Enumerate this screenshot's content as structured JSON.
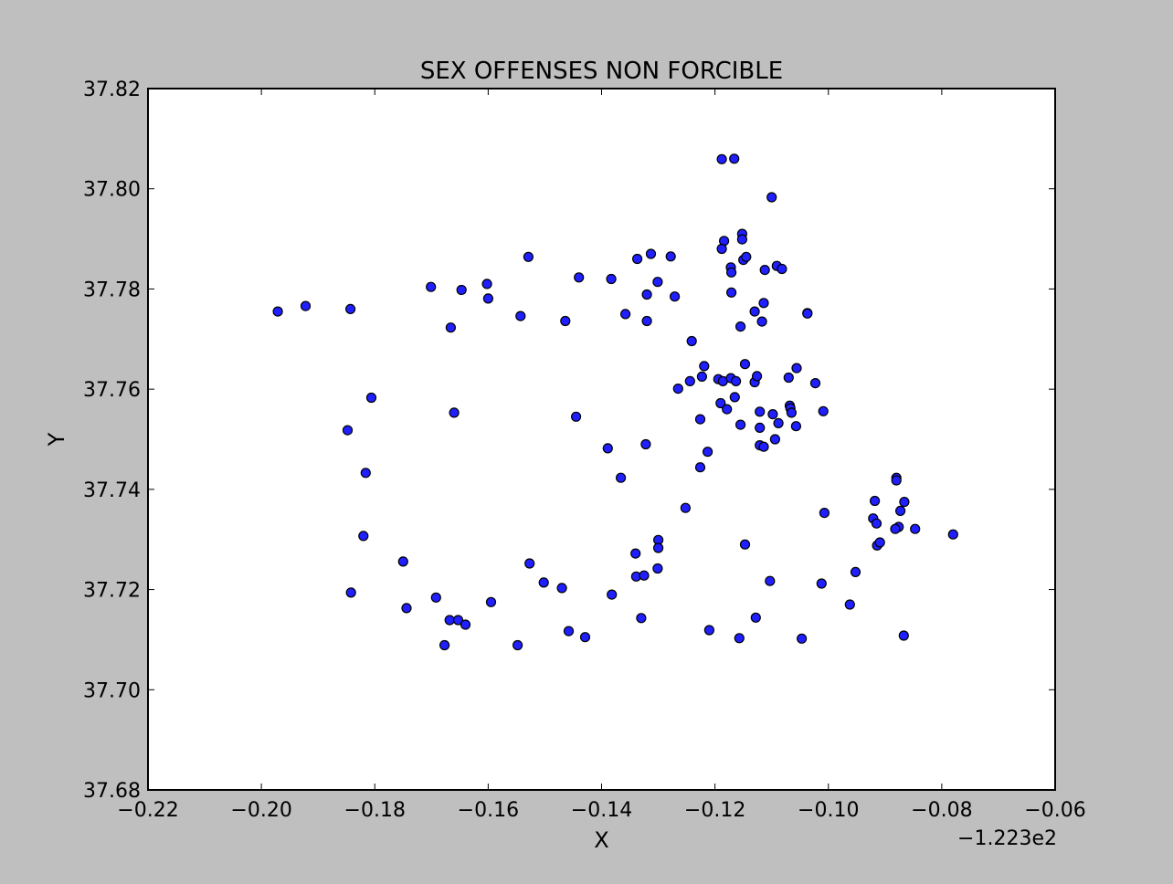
{
  "chart_data": {
    "type": "scatter",
    "title": "SEX OFFENSES NON FORCIBLE",
    "xlabel": "X",
    "ylabel": "Y",
    "x_offset_label": "−1.223e2",
    "xlim": [
      -0.22,
      -0.06
    ],
    "ylim": [
      37.68,
      37.82
    ],
    "x_ticks": [
      -0.22,
      -0.2,
      -0.18,
      -0.16,
      -0.14,
      -0.12,
      -0.1,
      -0.08,
      -0.06
    ],
    "x_tick_labels": [
      "−0.22",
      "−0.20",
      "−0.18",
      "−0.16",
      "−0.14",
      "−0.12",
      "−0.10",
      "−0.08",
      "−0.06"
    ],
    "y_ticks": [
      37.68,
      37.7,
      37.72,
      37.74,
      37.76,
      37.78,
      37.8,
      37.82
    ],
    "y_tick_labels": [
      "37.68",
      "37.70",
      "37.72",
      "37.74",
      "37.76",
      "37.78",
      "37.80",
      "37.82"
    ],
    "grid": false,
    "marker_color": "#1f1fff",
    "marker_edge": "#000000",
    "points": [
      [
        -0.1971,
        37.7755
      ],
      [
        -0.1922,
        37.7766
      ],
      [
        -0.1843,
        37.776
      ],
      [
        -0.1701,
        37.7804
      ],
      [
        -0.1647,
        37.7798
      ],
      [
        -0.1602,
        37.781
      ],
      [
        -0.16,
        37.7781
      ],
      [
        -0.1666,
        37.7723
      ],
      [
        -0.1543,
        37.7746
      ],
      [
        -0.1529,
        37.7864
      ],
      [
        -0.1464,
        37.7736
      ],
      [
        -0.144,
        37.7823
      ],
      [
        -0.1383,
        37.782
      ],
      [
        -0.1358,
        37.775
      ],
      [
        -0.1337,
        37.786
      ],
      [
        -0.1313,
        37.787
      ],
      [
        -0.1301,
        37.7814
      ],
      [
        -0.132,
        37.7789
      ],
      [
        -0.132,
        37.7736
      ],
      [
        -0.1278,
        37.7865
      ],
      [
        -0.1271,
        37.7785
      ],
      [
        -0.1806,
        37.7583
      ],
      [
        -0.1848,
        37.7518
      ],
      [
        -0.1816,
        37.7433
      ],
      [
        -0.166,
        37.7553
      ],
      [
        -0.1445,
        37.7545
      ],
      [
        -0.1389,
        37.7482
      ],
      [
        -0.1366,
        37.7423
      ],
      [
        -0.1322,
        37.749
      ],
      [
        -0.1241,
        37.7696
      ],
      [
        -0.1265,
        37.7601
      ],
      [
        -0.1244,
        37.7616
      ],
      [
        -0.1219,
        37.7646
      ],
      [
        -0.1223,
        37.7625
      ],
      [
        -0.1194,
        37.762
      ],
      [
        -0.1186,
        37.7616
      ],
      [
        -0.1172,
        37.7622
      ],
      [
        -0.1163,
        37.7616
      ],
      [
        -0.1147,
        37.765
      ],
      [
        -0.113,
        37.7614
      ],
      [
        -0.1126,
        37.7626
      ],
      [
        -0.107,
        37.7623
      ],
      [
        -0.1056,
        37.7642
      ],
      [
        -0.1023,
        37.7612
      ],
      [
        -0.119,
        37.7572
      ],
      [
        -0.1179,
        37.756
      ],
      [
        -0.1165,
        37.7584
      ],
      [
        -0.1226,
        37.754
      ],
      [
        -0.1155,
        37.7529
      ],
      [
        -0.1121,
        37.7555
      ],
      [
        -0.1098,
        37.755
      ],
      [
        -0.1121,
        37.7523
      ],
      [
        -0.1088,
        37.7532
      ],
      [
        -0.1068,
        37.7567
      ],
      [
        -0.1067,
        37.7562
      ],
      [
        -0.1065,
        37.7553
      ],
      [
        -0.1057,
        37.7526
      ],
      [
        -0.1009,
        37.7556
      ],
      [
        -0.1213,
        37.7475
      ],
      [
        -0.1226,
        37.7444
      ],
      [
        -0.1121,
        37.7488
      ],
      [
        -0.1114,
        37.7485
      ],
      [
        -0.1094,
        37.75
      ],
      [
        -0.1188,
        37.8059
      ],
      [
        -0.1166,
        37.806
      ],
      [
        -0.11,
        37.7983
      ],
      [
        -0.1152,
        37.791
      ],
      [
        -0.1152,
        37.7899
      ],
      [
        -0.1184,
        37.7896
      ],
      [
        -0.1188,
        37.788
      ],
      [
        -0.1172,
        37.7843
      ],
      [
        -0.1171,
        37.7833
      ],
      [
        -0.115,
        37.7858
      ],
      [
        -0.1145,
        37.7864
      ],
      [
        -0.1112,
        37.7838
      ],
      [
        -0.1091,
        37.7846
      ],
      [
        -0.1082,
        37.784
      ],
      [
        -0.1171,
        37.7793
      ],
      [
        -0.1114,
        37.7772
      ],
      [
        -0.113,
        37.7755
      ],
      [
        -0.1117,
        37.7735
      ],
      [
        -0.1155,
        37.7725
      ],
      [
        -0.1037,
        37.7752
      ],
      [
        -0.1037,
        37.7751
      ],
      [
        -0.1252,
        37.7363
      ],
      [
        -0.182,
        37.7307
      ],
      [
        -0.175,
        37.7256
      ],
      [
        -0.1842,
        37.7194
      ],
      [
        -0.1744,
        37.7163
      ],
      [
        -0.1692,
        37.7184
      ],
      [
        -0.1668,
        37.7139
      ],
      [
        -0.1653,
        37.7139
      ],
      [
        -0.164,
        37.713
      ],
      [
        -0.1677,
        37.7089
      ],
      [
        -0.1595,
        37.7175
      ],
      [
        -0.1548,
        37.7089
      ],
      [
        -0.1527,
        37.7252
      ],
      [
        -0.1502,
        37.7214
      ],
      [
        -0.147,
        37.7203
      ],
      [
        -0.1458,
        37.7117
      ],
      [
        -0.1429,
        37.7105
      ],
      [
        -0.1382,
        37.719
      ],
      [
        -0.134,
        37.7272
      ],
      [
        -0.1339,
        37.7226
      ],
      [
        -0.1325,
        37.7228
      ],
      [
        -0.13,
        37.7299
      ],
      [
        -0.13,
        37.7283
      ],
      [
        -0.1301,
        37.7242
      ],
      [
        -0.133,
        37.7143
      ],
      [
        -0.121,
        37.7119
      ],
      [
        -0.1157,
        37.7103
      ],
      [
        -0.1147,
        37.729
      ],
      [
        -0.1103,
        37.7217
      ],
      [
        -0.1128,
        37.7144
      ],
      [
        -0.1047,
        37.7102
      ],
      [
        -0.1007,
        37.7353
      ],
      [
        -0.1012,
        37.7212
      ],
      [
        -0.0952,
        37.7235
      ],
      [
        -0.0962,
        37.717
      ],
      [
        -0.0918,
        37.7377
      ],
      [
        -0.0921,
        37.7342
      ],
      [
        -0.0915,
        37.7332
      ],
      [
        -0.0914,
        37.7288
      ],
      [
        -0.0909,
        37.7294
      ],
      [
        -0.088,
        37.7423
      ],
      [
        -0.088,
        37.7418
      ],
      [
        -0.0866,
        37.7375
      ],
      [
        -0.0873,
        37.7357
      ],
      [
        -0.0876,
        37.7325
      ],
      [
        -0.0882,
        37.7321
      ],
      [
        -0.0847,
        37.7321
      ],
      [
        -0.078,
        37.731
      ],
      [
        -0.0867,
        37.7108
      ]
    ]
  }
}
